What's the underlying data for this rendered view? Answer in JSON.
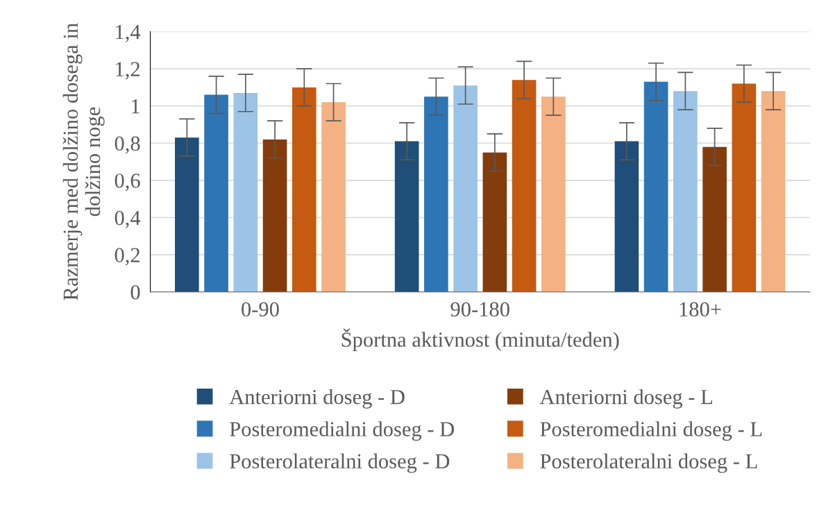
{
  "chart_data": {
    "type": "bar",
    "xlabel": "Športna aktivnost (minuta/teden)",
    "ylabel": "Razmerje med dolžino dosega in dolžino noge",
    "categories": [
      "0-90",
      "90-180",
      "180+"
    ],
    "series": [
      {
        "name": "Anteriorni doseg - D",
        "color": "#1f4e79",
        "values": [
          0.83,
          0.81,
          0.81
        ],
        "errors": [
          0.1,
          0.1,
          0.1
        ]
      },
      {
        "name": "Posteromedialni doseg - D",
        "color": "#2e75b6",
        "values": [
          1.06,
          1.05,
          1.13
        ],
        "errors": [
          0.1,
          0.1,
          0.1
        ]
      },
      {
        "name": "Posterolateralni doseg - D",
        "color": "#9dc3e6",
        "values": [
          1.07,
          1.11,
          1.08
        ],
        "errors": [
          0.1,
          0.1,
          0.1
        ]
      },
      {
        "name": "Anteriorni doseg - L",
        "color": "#843c0c",
        "values": [
          0.82,
          0.75,
          0.78
        ],
        "errors": [
          0.1,
          0.1,
          0.1
        ]
      },
      {
        "name": "Posteromedialni doseg - L",
        "color": "#c55a11",
        "values": [
          1.1,
          1.14,
          1.12
        ],
        "errors": [
          0.1,
          0.1,
          0.1
        ]
      },
      {
        "name": "Posterolateralni doseg - L",
        "color": "#f4b183",
        "values": [
          1.02,
          1.05,
          1.08
        ],
        "errors": [
          0.1,
          0.1,
          0.1
        ]
      }
    ],
    "ylim": [
      0,
      1.4
    ],
    "yticks": [
      0,
      {
        "value": 0.2,
        "label": "0,2"
      },
      {
        "value": 0.4,
        "label": "0,4"
      },
      {
        "value": 0.6,
        "label": "0,6"
      },
      {
        "value": 0.8,
        "label": "0,8"
      },
      1,
      {
        "value": 1.2,
        "label": "1,2"
      },
      {
        "value": 1.4,
        "label": "1,4"
      }
    ],
    "grid": "y",
    "legend": "bottom"
  }
}
